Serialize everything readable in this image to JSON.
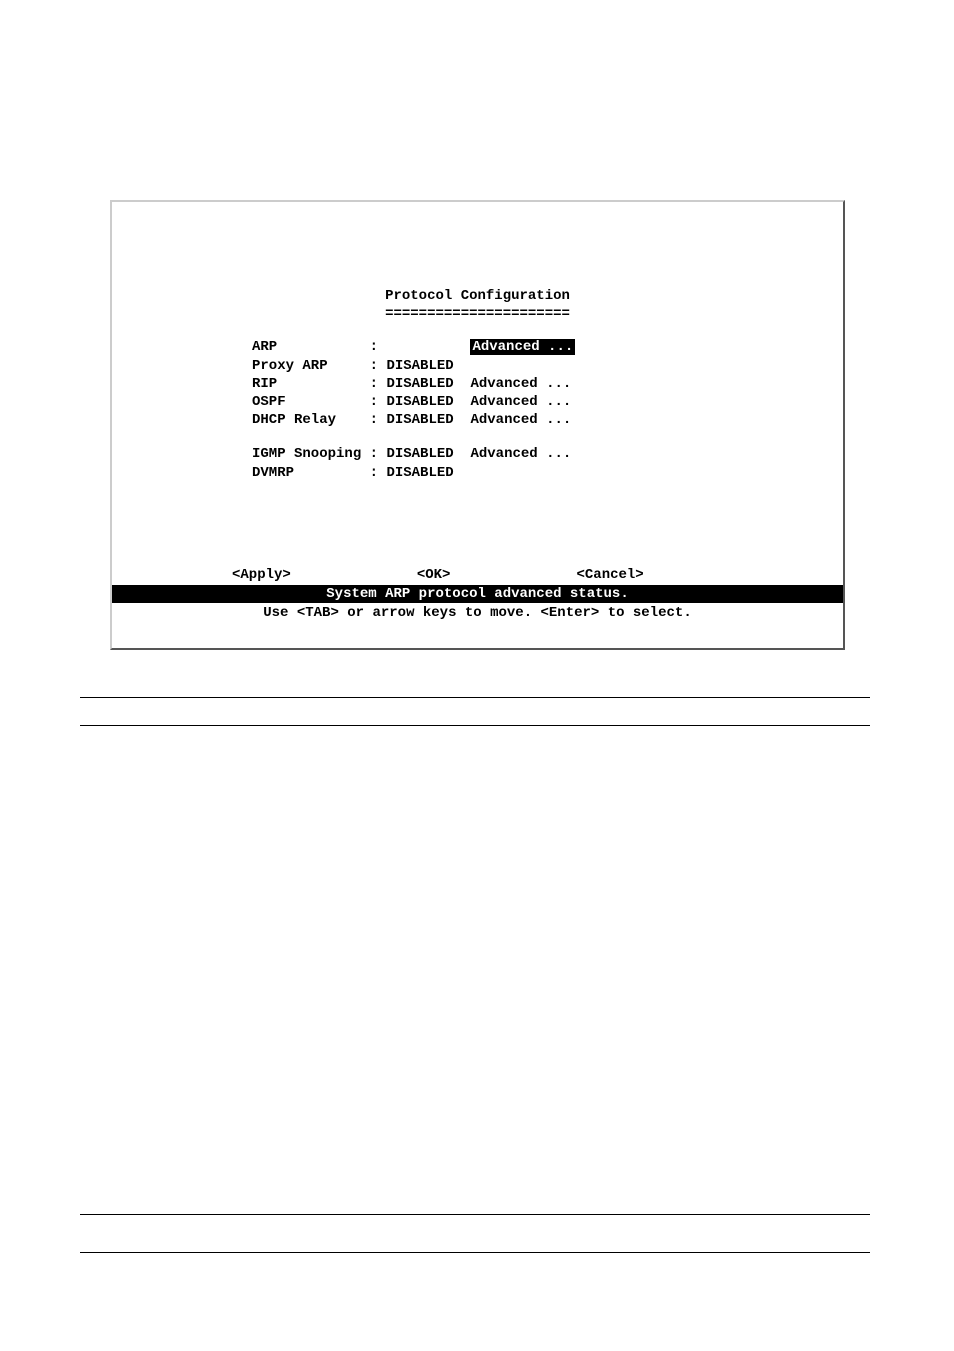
{
  "window": {
    "title": "Protocol Configuration",
    "underline": "======================"
  },
  "protocols": {
    "arp": {
      "label": "ARP",
      "value": "",
      "advanced": "Advanced ..."
    },
    "proxy_arp": {
      "label": "Proxy ARP",
      "value": "DISABLED"
    },
    "rip": {
      "label": "RIP",
      "value": "DISABLED",
      "advanced": "Advanced ..."
    },
    "ospf": {
      "label": "OSPF",
      "value": "DISABLED",
      "advanced": "Advanced ..."
    },
    "dhcp_relay": {
      "label": "DHCP Relay",
      "value": "DISABLED",
      "advanced": "Advanced ..."
    },
    "igmp": {
      "label": "IGMP Snooping",
      "value": "DISABLED",
      "advanced": "Advanced ..."
    },
    "dvmrp": {
      "label": "DVMRP",
      "value": "DISABLED"
    }
  },
  "buttons": {
    "apply": "<Apply>",
    "ok": "<OK>",
    "cancel": "<Cancel>"
  },
  "status": "System ARP protocol advanced status.",
  "help": "Use <TAB> or arrow keys to move. <Enter> to select."
}
